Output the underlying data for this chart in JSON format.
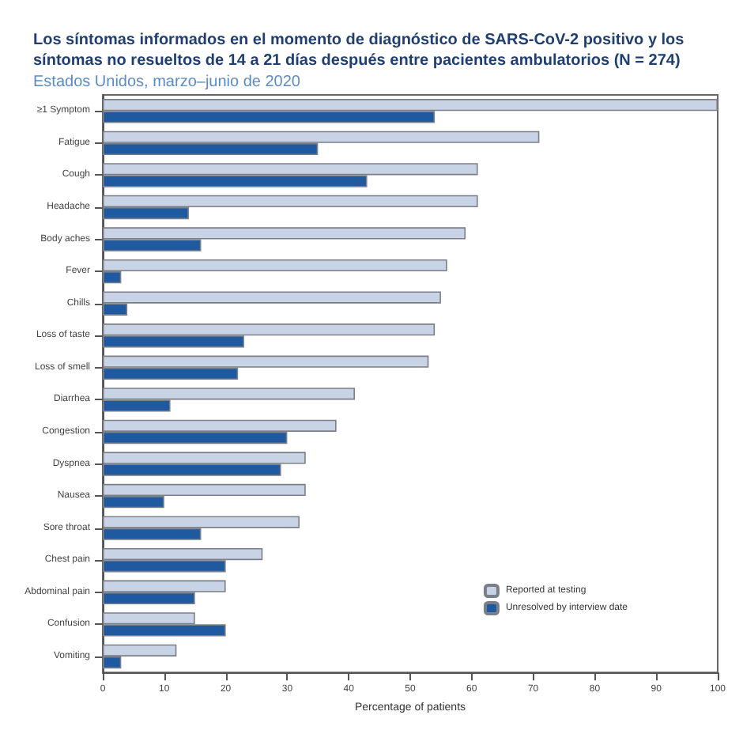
{
  "chart_data": {
    "type": "bar",
    "orientation": "horizontal",
    "title": "Los síntomas informados en el momento de diagnóstico de SARS-CoV-2 positivo y los síntomas no resueltos de 14 a 21 días después entre pacientes ambulatorios (N = 274)",
    "subtitle": "Estados Unidos, marzo–junio de 2020",
    "xlabel": "Percentage of patients",
    "categories": [
      "≥1 Symptom",
      "Fatigue",
      "Cough",
      "Headache",
      "Body aches",
      "Fever",
      "Chills",
      "Loss of taste",
      "Loss of smell",
      "Diarrhea",
      "Congestion",
      "Dyspnea",
      "Nausea",
      "Sore throat",
      "Chest pain",
      "Abdominal pain",
      "Confusion",
      "Vomiting"
    ],
    "series": [
      {
        "name": "Reported at testing",
        "color": "#c9d3e6",
        "values": [
          100,
          71,
          61,
          61,
          59,
          56,
          55,
          54,
          53,
          41,
          38,
          33,
          33,
          32,
          26,
          20,
          15,
          12
        ]
      },
      {
        "name": "Unresolved by interview date",
        "color": "#1f5aa0",
        "values": [
          54,
          35,
          43,
          14,
          16,
          3,
          4,
          23,
          22,
          11,
          30,
          29,
          10,
          16,
          20,
          15,
          20,
          3
        ]
      }
    ],
    "xlim": [
      0,
      100
    ],
    "xticks": [
      0,
      10,
      20,
      30,
      40,
      50,
      60,
      70,
      80,
      90,
      100
    ],
    "legend": "bottom right",
    "grid": false
  }
}
